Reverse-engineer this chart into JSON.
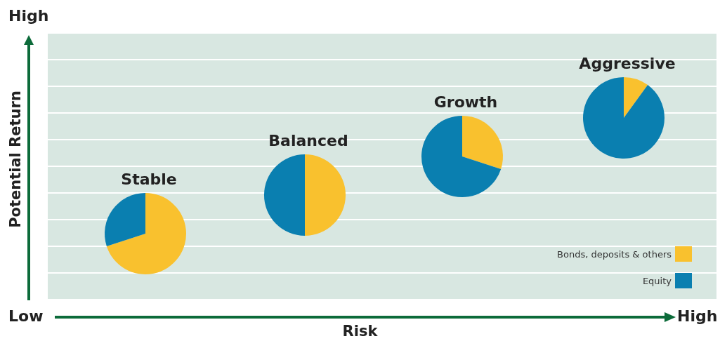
{
  "chart_data": [
    {
      "type": "pie",
      "title": "Stable",
      "categories": [
        null,
        null
      ],
      "values": [
        70,
        30
      ],
      "colors": [
        "#f9c12e",
        "#0a7fb0"
      ]
    },
    {
      "type": "pie",
      "title": "Balanced",
      "categories": [
        null,
        null
      ],
      "values": [
        50,
        50
      ],
      "colors": [
        "#f9c12e",
        "#0a7fb0"
      ]
    },
    {
      "type": "pie",
      "title": "Growth",
      "categories": [
        null,
        null
      ],
      "values": [
        30,
        70
      ],
      "colors": [
        "#f9c12e",
        "#0a7fb0"
      ]
    },
    {
      "type": "pie",
      "title": "Aggressive",
      "categories": [
        "Bonds, deposits & others",
        "Equity"
      ],
      "values": [
        10,
        90
      ],
      "colors": [
        "#f9c12e",
        "#0a7fb0"
      ],
      "legend": "bottom right"
    },
    {
      "type": "other",
      "xlabel": "Risk",
      "ylabel": "Potential Return",
      "annotations": [
        "High",
        "Low",
        "High"
      ]
    }
  ]
}
